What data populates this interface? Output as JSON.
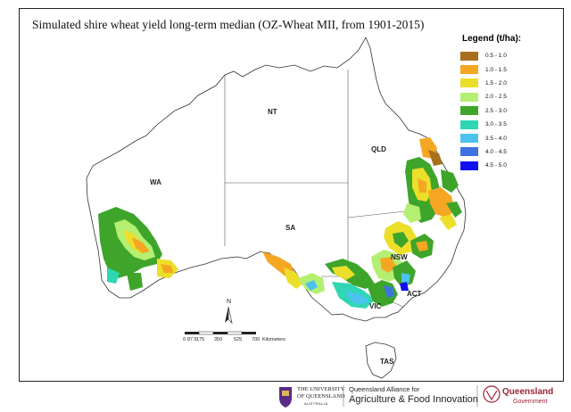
{
  "title": "Simulated shire wheat yield long-term median (OZ-Wheat MII, from 1901-2015)",
  "legend": {
    "title": "Legend (t/ha):",
    "items": [
      {
        "label": "0.5 - 1.0",
        "color": "#a8701e"
      },
      {
        "label": "1.0 - 1.5",
        "color": "#f5a623"
      },
      {
        "label": "1.5 - 2.0",
        "color": "#ecdf2a"
      },
      {
        "label": "2.0 - 2.5",
        "color": "#b5ef72"
      },
      {
        "label": "2.5 - 3.0",
        "color": "#3ea52a"
      },
      {
        "label": "3.0 - 3.5",
        "color": "#2fd6b4"
      },
      {
        "label": "3.5 - 4.0",
        "color": "#4cc3ee"
      },
      {
        "label": "4.0 - 4.5",
        "color": "#3f73e2"
      },
      {
        "label": "4.5 - 5.0",
        "color": "#1010ee"
      }
    ]
  },
  "regions": {
    "wa": "WA",
    "nt": "NT",
    "qld": "QLD",
    "sa": "SA",
    "nsw": "NSW",
    "act": "ACT",
    "vic": "VIC",
    "tas": "TAS"
  },
  "north_arrow": "N",
  "scale_bar": {
    "ticks": [
      "0",
      "87.5",
      "175",
      "350",
      "525",
      "700"
    ],
    "unit": "Kilometers"
  },
  "footer": {
    "uq_line1": "THE UNIVERSITY",
    "uq_line2": "OF QUEENSLAND",
    "uq_line3": "AUSTRALIA",
    "qaafi_line1": "Queensland Alliance for",
    "qaafi_line2": "Agriculture & Food Innovation",
    "qld_line1": "Queensland",
    "qld_line2": "Government"
  }
}
